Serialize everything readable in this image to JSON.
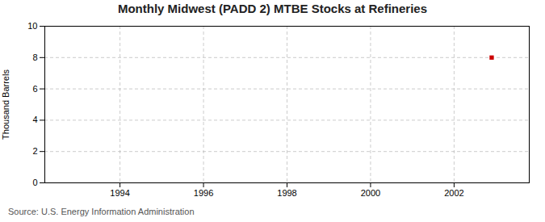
{
  "chart_data": {
    "type": "scatter",
    "title": "Monthly Midwest (PADD 2) MTBE Stocks at Refineries",
    "ylabel": "Thousand Barrels",
    "source": "Source: U.S. Energy Information Administration",
    "x": [
      2002.9
    ],
    "values": [
      8.0
    ],
    "color": "#cc0000",
    "marker": "square",
    "xlim": [
      1992.2,
      2003.8
    ],
    "xticks": [
      1994,
      1996,
      1998,
      2000,
      2002
    ],
    "ylim": [
      0,
      10
    ],
    "yticks": [
      0,
      2,
      4,
      6,
      8,
      10
    ],
    "grid": true
  }
}
